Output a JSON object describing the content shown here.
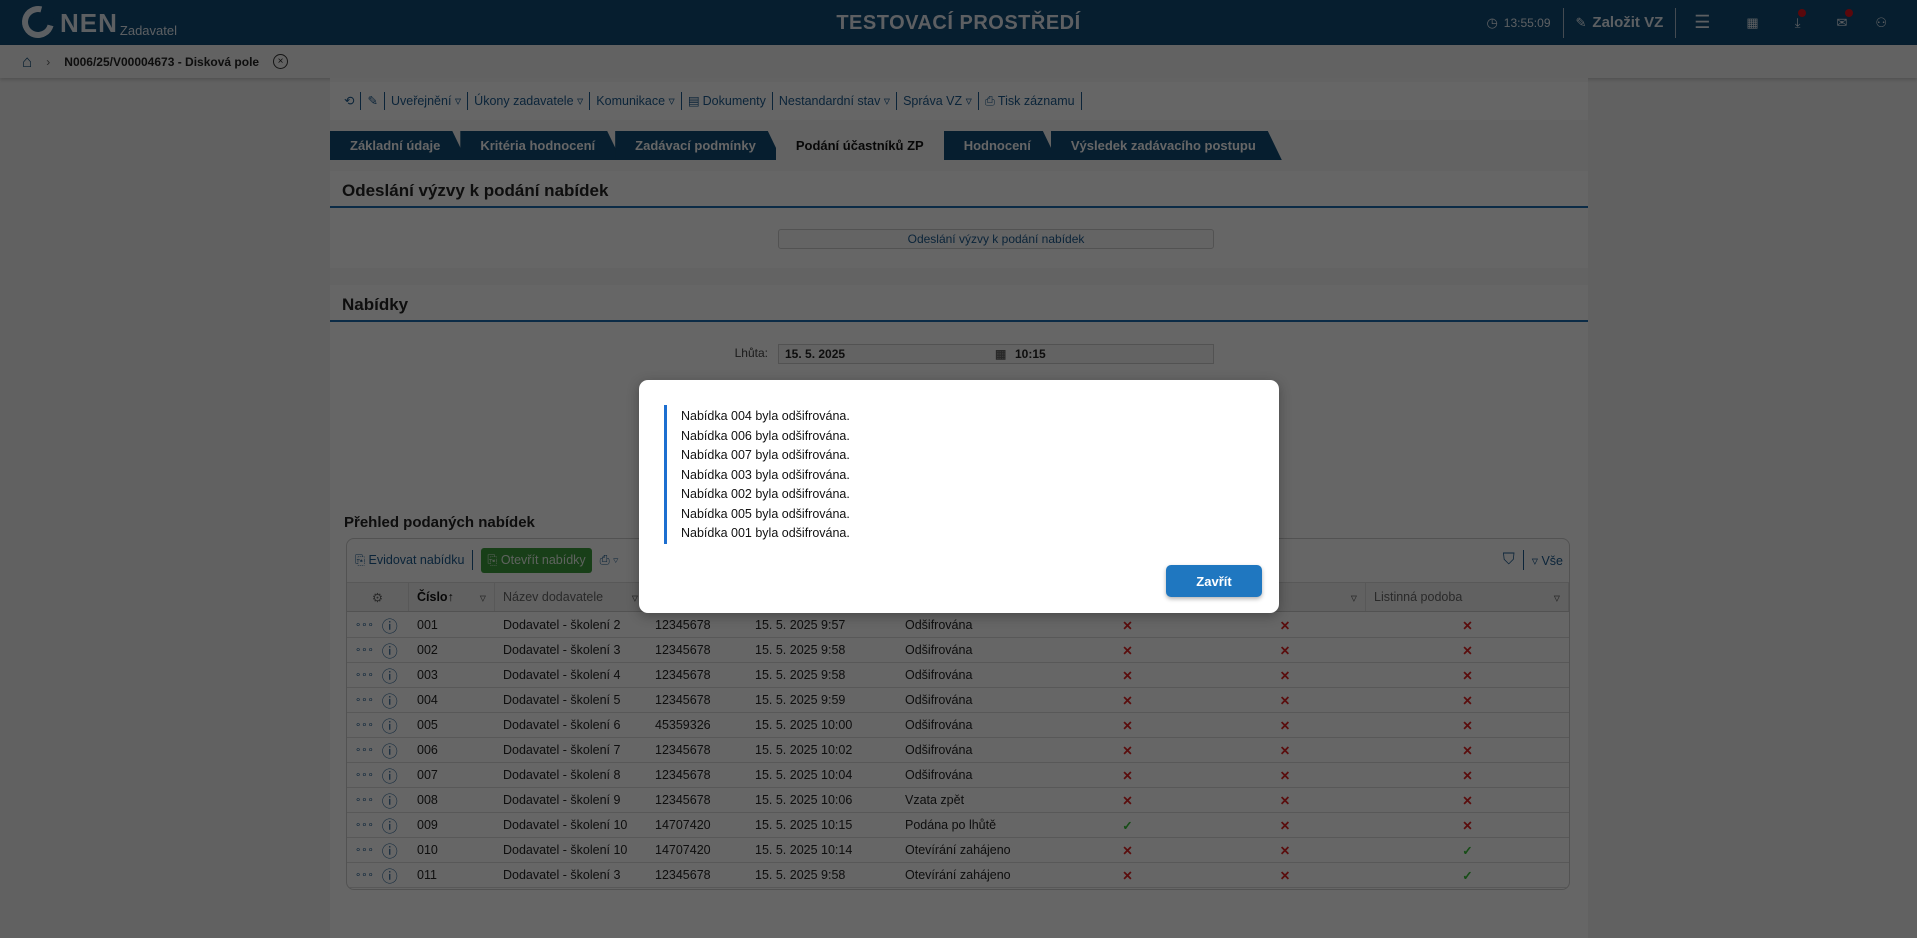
{
  "header": {
    "logo": "NEN",
    "logo_sub": "Zadavatel",
    "environment": "TESTOVACÍ PROSTŘEDÍ",
    "clock": "13:55:09",
    "create_label": "Založit VZ"
  },
  "breadcrumb": {
    "title": "N006/25/V00004673 - Disková pole"
  },
  "toolbar": {
    "items": [
      "Uveřejnění ▿",
      "Úkony zadavatele ▿",
      "Komunikace ▿",
      "Dokumenty",
      "Nestandardní stav ▿",
      "Správa VZ ▿",
      "Tisk záznamu"
    ]
  },
  "tabs": [
    {
      "label": "Základní údaje"
    },
    {
      "label": "Kritéria hodnocení"
    },
    {
      "label": "Zadávací podmínky"
    },
    {
      "label": "Podání účastníků ZP",
      "active": true
    },
    {
      "label": "Hodnocení"
    },
    {
      "label": "Výsledek zadávacího postupu"
    }
  ],
  "invite": {
    "title": "Odeslání výzvy k podání nabídek",
    "button": "Odeslání výzvy k podání nabídek"
  },
  "offers": {
    "title": "Nabídky",
    "deadline_label": "Lhůta:",
    "deadline_date": "15. 5. 2025",
    "deadline_time": "10:15"
  },
  "grid": {
    "title": "Přehled podaných nabídek",
    "register_label": "Evidovat nabídku",
    "open_label": "Otevřít nabídky",
    "filter_all": "Vše",
    "columns": [
      "Číslo",
      "Název dodavatele",
      "",
      "",
      "",
      "",
      "nepodaná",
      "Listinná podoba"
    ],
    "rows": [
      [
        "001",
        "Dodavatel - školení 2",
        "12345678",
        "15. 5. 2025 9:57",
        "Odšifrována",
        "x",
        "x",
        "x"
      ],
      [
        "002",
        "Dodavatel - školení 3",
        "12345678",
        "15. 5. 2025 9:58",
        "Odšifrována",
        "x",
        "x",
        "x"
      ],
      [
        "003",
        "Dodavatel - školení 4",
        "12345678",
        "15. 5. 2025 9:58",
        "Odšifrována",
        "x",
        "x",
        "x"
      ],
      [
        "004",
        "Dodavatel - školení 5",
        "12345678",
        "15. 5. 2025 9:59",
        "Odšifrována",
        "x",
        "x",
        "x"
      ],
      [
        "005",
        "Dodavatel - školení 6",
        "45359326",
        "15. 5. 2025 10:00",
        "Odšifrována",
        "x",
        "x",
        "x"
      ],
      [
        "006",
        "Dodavatel - školení 7",
        "12345678",
        "15. 5. 2025 10:02",
        "Odšifrována",
        "x",
        "x",
        "x"
      ],
      [
        "007",
        "Dodavatel - školení 8",
        "12345678",
        "15. 5. 2025 10:04",
        "Odšifrována",
        "x",
        "x",
        "x"
      ],
      [
        "008",
        "Dodavatel - školení 9",
        "12345678",
        "15. 5. 2025 10:06",
        "Vzata zpět",
        "x",
        "x",
        "x"
      ],
      [
        "009",
        "Dodavatel - školení 10",
        "14707420",
        "15. 5. 2025 10:15",
        "Podána po lhůtě",
        "ok",
        "x",
        "x"
      ],
      [
        "010",
        "Dodavatel - školení 10",
        "14707420",
        "15. 5. 2025 10:14",
        "Otevírání zahájeno",
        "x",
        "x",
        "ok"
      ],
      [
        "011",
        "Dodavatel - školení 3",
        "12345678",
        "15. 5. 2025 9:58",
        "Otevírání zahájeno",
        "x",
        "x",
        "ok"
      ]
    ]
  },
  "modal": {
    "messages": [
      "Nabídka 004 byla odšifrována.",
      "Nabídka 006 byla odšifrována.",
      "Nabídka 007 byla odšifrována.",
      "Nabídka 003 byla odšifrována.",
      "Nabídka 002 byla odšifrována.",
      "Nabídka 005 byla odšifrována.",
      "Nabídka 001 byla odšifrována."
    ],
    "close_label": "Zavřít"
  },
  "colors": {
    "brand": "#0f4a75",
    "accent": "#1f77c0",
    "success": "#2e9a2e",
    "error": "#b02020"
  }
}
